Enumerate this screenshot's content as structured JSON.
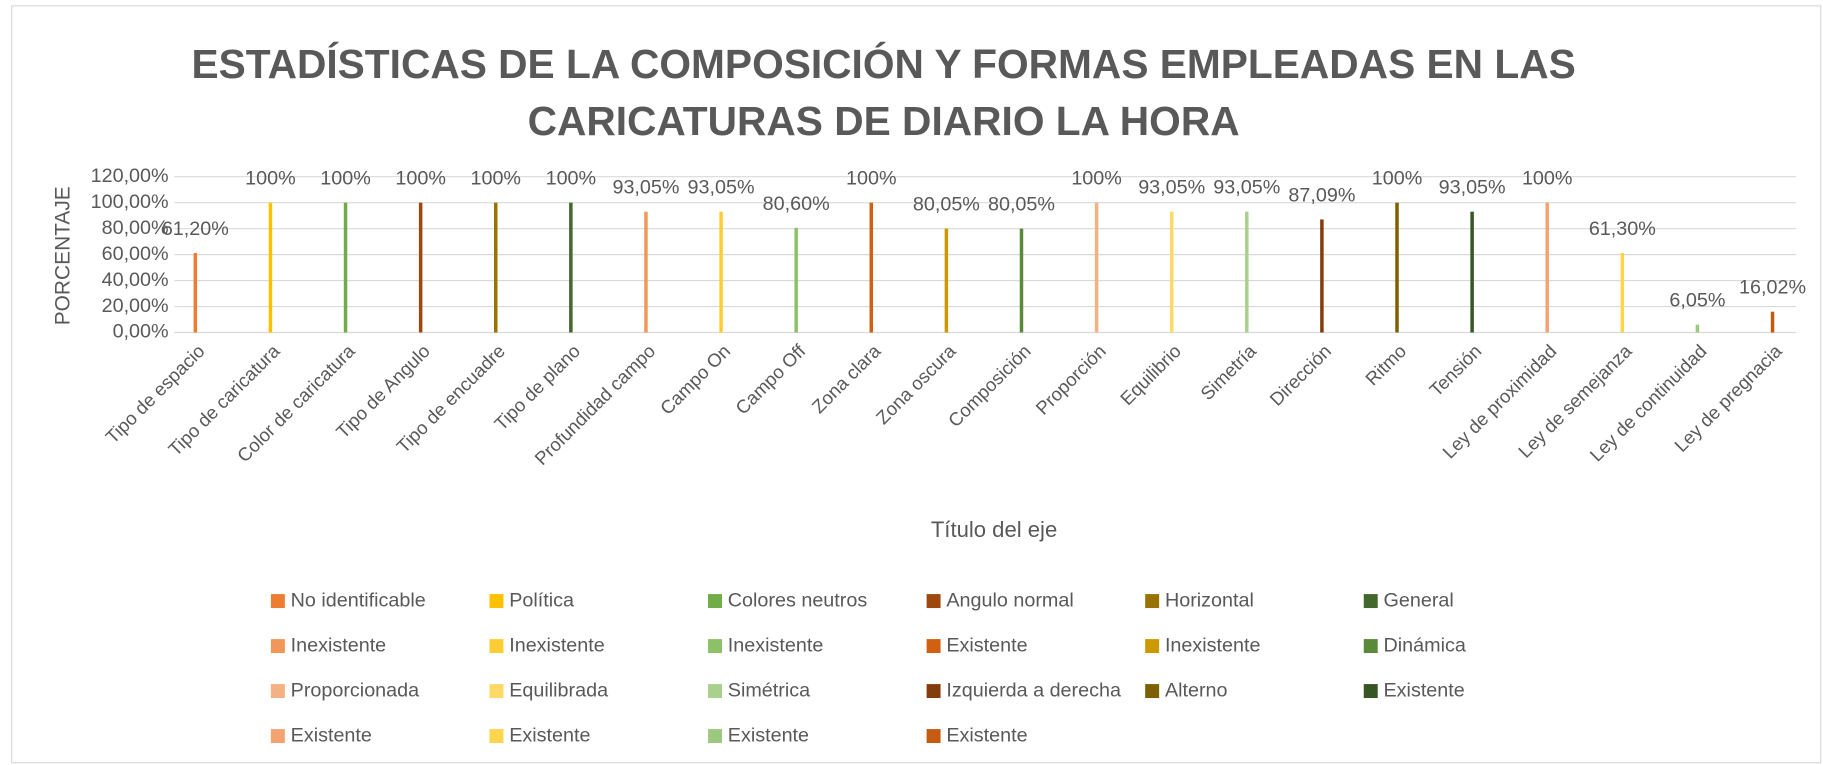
{
  "chart_data": {
    "type": "bar",
    "title": [
      "ESTADÍSTICAS DE LA COMPOSICIÓN Y FORMAS EMPLEADAS EN  LAS",
      "CARICATURAS DE DIARIO LA HORA"
    ],
    "y_label": "PORCENTAJE",
    "x_label": "Título del eje",
    "categories": [
      "Tipo de espacio",
      "Tipo de caricatura",
      "Color de caricatura",
      "Tipo de Angulo",
      "Tipo de encuadre",
      "Tipo de plano",
      "Profundidad campo",
      "Campo On",
      "Campo Off",
      "Zona clara",
      "Zona oscura",
      "Composición",
      "Proporción",
      "Equilibrio",
      "Simetría",
      "Dirección",
      "Ritmo",
      "Tensión",
      "Ley de proximidad",
      "Ley de semejanza",
      "Ley de continuidad",
      "Ley de pregnacia"
    ],
    "values": [
      61.2,
      100,
      100,
      100,
      100,
      100,
      93.05,
      93.05,
      80.6,
      100,
      80.05,
      80.05,
      100,
      93.05,
      93.05,
      87.09,
      100,
      93.05,
      100,
      61.3,
      6.05,
      16.02
    ],
    "value_labels": [
      "61,20%",
      "100%",
      "100%",
      "100%",
      "100%",
      "100%",
      "93,05%",
      "93,05%",
      "80,60%",
      "100%",
      "80,05%",
      "80,05%",
      "100%",
      "93,05%",
      "93,05%",
      "87,09%",
      "100%",
      "93,05%",
      "100%",
      "61,30%",
      "6,05%",
      "16,02%"
    ],
    "colors": [
      "#ed7d31",
      "#ffc000",
      "#70ad47",
      "#9e480e",
      "#997300",
      "#43682b",
      "#f1975a",
      "#ffcd33",
      "#8cc168",
      "#d26012",
      "#cc9a00",
      "#5a8a39",
      "#f4b183",
      "#ffd966",
      "#a9d18e",
      "#843c0c",
      "#7f6000",
      "#375623",
      "#f4a370",
      "#ffd54d",
      "#9dc97f",
      "#c55a11"
    ],
    "legend": [
      "No identificable",
      "Política",
      "Colores neutros",
      "Angulo normal",
      "Horizontal",
      "General",
      "Inexistente",
      "Inexistente",
      "Inexistente",
      "Existente",
      "Inexistente",
      "Dinámica",
      "Proporcionada",
      "Equilibrada",
      "Simétrica",
      "Izquierda a derecha",
      "Alterno",
      "Existente",
      "Existente",
      "Existente",
      "Existente",
      "Existente"
    ],
    "ylim": [
      0,
      120
    ],
    "yticks": [
      {
        "value": 0,
        "label": "0,00%"
      },
      {
        "value": 20,
        "label": "20,00%"
      },
      {
        "value": 40,
        "label": "40,00%"
      },
      {
        "value": 60,
        "label": "60,00%"
      },
      {
        "value": 80,
        "label": "80,00%"
      },
      {
        "value": 100,
        "label": "100,00%"
      },
      {
        "value": 120,
        "label": "120,00%"
      }
    ],
    "grid": true
  }
}
